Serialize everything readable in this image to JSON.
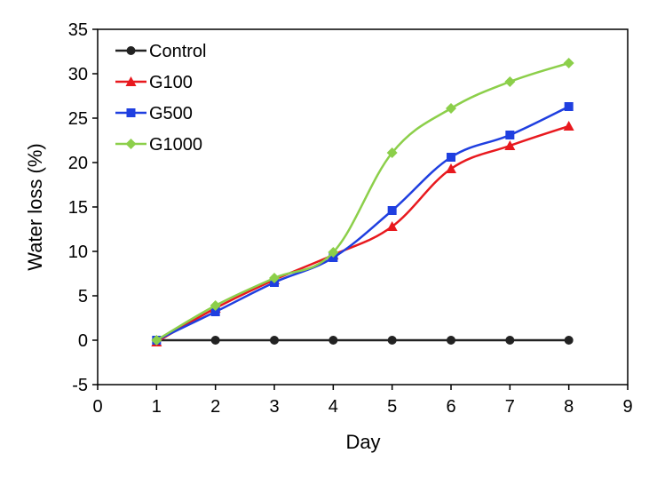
{
  "chart_data": {
    "type": "line",
    "xlabel": "Day",
    "ylabel": "Water loss (%)",
    "xlim": [
      0,
      9
    ],
    "ylim": [
      -5,
      35
    ],
    "xticks": [
      0,
      1,
      2,
      3,
      4,
      5,
      6,
      7,
      8,
      9
    ],
    "yticks": [
      -5,
      0,
      5,
      10,
      15,
      20,
      25,
      30,
      35
    ],
    "x": [
      1,
      2,
      3,
      4,
      5,
      6,
      7,
      8
    ],
    "grid": false,
    "legend_position": "top-left",
    "series": [
      {
        "name": "Control",
        "color": "#222222",
        "marker": "circle",
        "values": [
          0,
          0,
          0,
          0,
          0,
          0,
          0,
          0
        ]
      },
      {
        "name": "G100",
        "color": "#e8191e",
        "marker": "triangle",
        "values": [
          -0.2,
          3.6,
          6.8,
          9.6,
          12.8,
          19.3,
          21.9,
          24.1
        ]
      },
      {
        "name": "G500",
        "color": "#1f3fe0",
        "marker": "square",
        "values": [
          0,
          3.2,
          6.5,
          9.3,
          14.6,
          20.6,
          23.1,
          26.3
        ]
      },
      {
        "name": "G1000",
        "color": "#8ccf4a",
        "marker": "diamond",
        "values": [
          0,
          3.9,
          7.0,
          9.9,
          21.1,
          26.1,
          29.1,
          31.2
        ]
      }
    ]
  }
}
